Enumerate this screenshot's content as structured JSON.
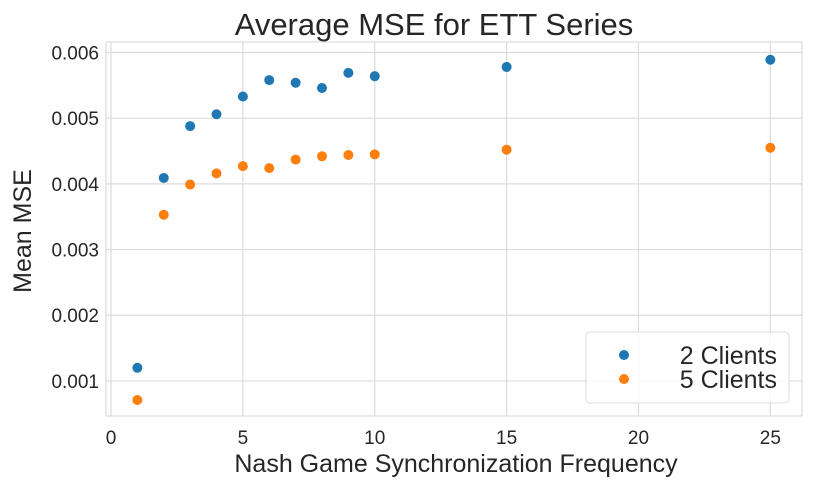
{
  "chart_data": {
    "type": "scatter",
    "title": "Average MSE for ETT Series",
    "xlabel": "Nash Game Synchronization Frequency",
    "ylabel": "Mean MSE",
    "xlim": [
      -0.19,
      26.2
    ],
    "ylim": [
      0.000466,
      0.00616
    ],
    "xticks": [
      0,
      5,
      10,
      15,
      20,
      25
    ],
    "xtick_labels": [
      "0",
      "5",
      "10",
      "15",
      "20",
      "25"
    ],
    "yticks": [
      0.001,
      0.002,
      0.003,
      0.004,
      0.005,
      0.006
    ],
    "ytick_labels": [
      "0.001",
      "0.002",
      "0.003",
      "0.004",
      "0.005",
      "0.006"
    ],
    "grid": true,
    "legend_position": "bottom-right",
    "x": [
      1,
      2,
      3,
      4,
      5,
      6,
      7,
      8,
      9,
      10,
      15,
      25
    ],
    "series": [
      {
        "name": "2 Clients",
        "color": "#1f77b4",
        "values": [
          0.0012,
          0.00409,
          0.00488,
          0.00506,
          0.00533,
          0.00558,
          0.00554,
          0.00546,
          0.00569,
          0.00564,
          0.00578,
          0.00589
        ]
      },
      {
        "name": "5 Clients",
        "color": "#ff7f0e",
        "values": [
          0.00071,
          0.00353,
          0.00399,
          0.00416,
          0.00427,
          0.00424,
          0.00437,
          0.00442,
          0.00444,
          0.00445,
          0.00452,
          0.00455
        ]
      }
    ]
  }
}
